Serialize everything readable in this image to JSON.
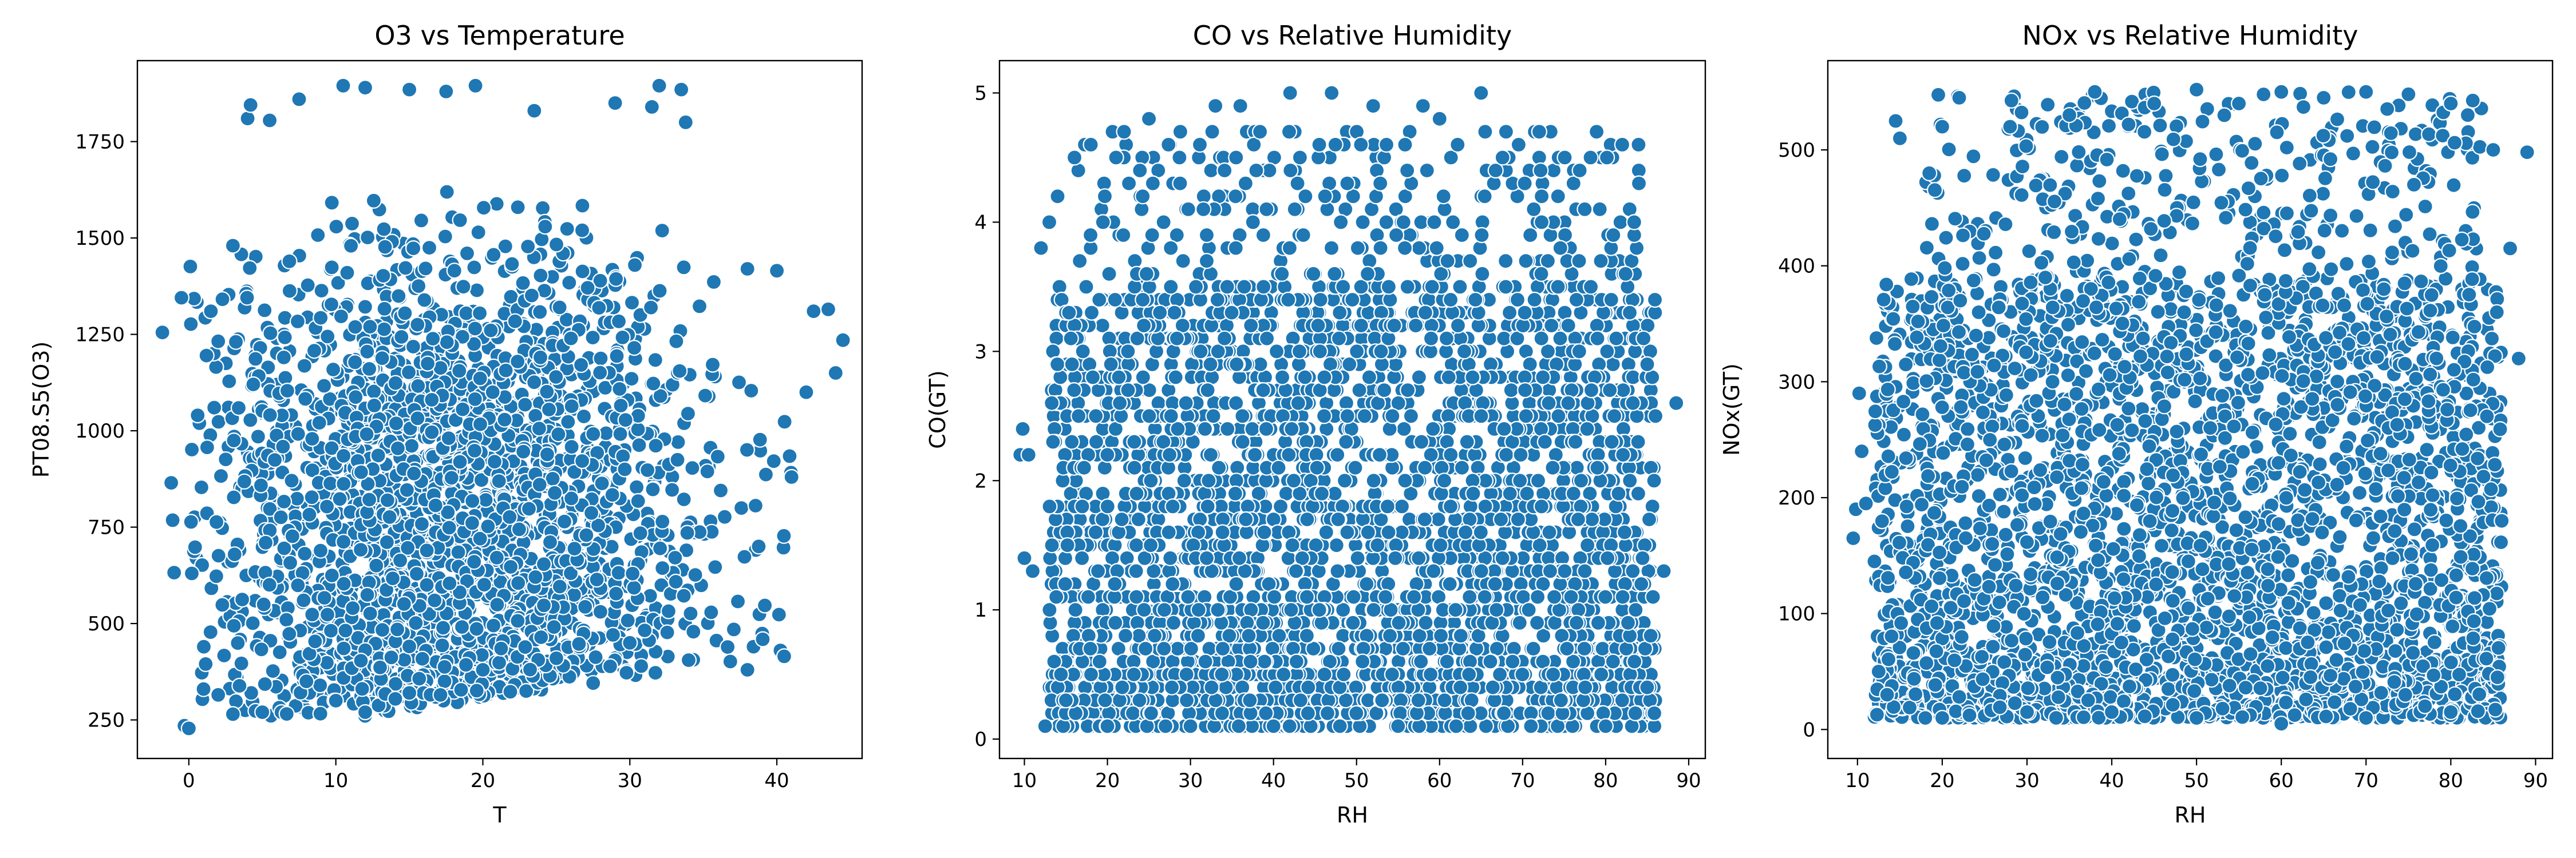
{
  "chart_data": [
    {
      "type": "scatter",
      "title": "O3 vs Temperature",
      "xlabel": "T",
      "ylabel": "PT08.S5(O3)",
      "xlim": [
        -3.5,
        45.8
      ],
      "ylim": [
        150,
        1960
      ],
      "xticks": [
        0,
        10,
        20,
        30,
        40
      ],
      "yticks": [
        250,
        500,
        750,
        1000,
        1250,
        1500,
        1750
      ],
      "marker_color": "#1f77b4",
      "grid": false,
      "sample_points": [
        [
          -1.8,
          1255
        ],
        [
          -1.2,
          865
        ],
        [
          -1.1,
          768
        ],
        [
          -1.0,
          632
        ],
        [
          -0.5,
          1345
        ],
        [
          -0.3,
          235
        ],
        [
          0.0,
          228
        ],
        [
          0.2,
          630
        ],
        [
          0.6,
          1040
        ],
        [
          1.5,
          1310
        ],
        [
          1.2,
          1195
        ],
        [
          2.0,
          1232
        ],
        [
          3.0,
          1480
        ],
        [
          4.0,
          1810
        ],
        [
          4.2,
          1845
        ],
        [
          5.5,
          1805
        ],
        [
          7.5,
          1860
        ],
        [
          10.5,
          1895
        ],
        [
          12.0,
          1890
        ],
        [
          15.0,
          1885
        ],
        [
          17.5,
          1880
        ],
        [
          19.5,
          1895
        ],
        [
          23.5,
          1830
        ],
        [
          29.0,
          1850
        ],
        [
          31.5,
          1840
        ],
        [
          32.0,
          1895
        ],
        [
          33.5,
          1885
        ],
        [
          33.8,
          1800
        ],
        [
          38.0,
          1420
        ],
        [
          40.0,
          1415
        ],
        [
          42.5,
          1310
        ],
        [
          43.5,
          1315
        ],
        [
          44.5,
          1235
        ],
        [
          44.0,
          1150
        ],
        [
          42.0,
          1100
        ],
        [
          41.0,
          880
        ],
        [
          40.5,
          415
        ],
        [
          38.0,
          380
        ],
        [
          34.0,
          405
        ],
        [
          30.0,
          450
        ],
        [
          25.0,
          410
        ],
        [
          20.0,
          380
        ],
        [
          15.0,
          320
        ],
        [
          10.0,
          300
        ],
        [
          5.0,
          270
        ],
        [
          3.0,
          265
        ],
        [
          2.0,
          315
        ],
        [
          1.0,
          330
        ],
        [
          8.0,
          350
        ],
        [
          12.0,
          270
        ]
      ]
    },
    {
      "type": "scatter",
      "title": "CO vs Relative Humidity",
      "xlabel": "RH",
      "ylabel": "CO(GT)",
      "xlim": [
        7.0,
        92.0
      ],
      "ylim": [
        -0.15,
        5.25
      ],
      "xticks": [
        10,
        20,
        30,
        40,
        50,
        60,
        70,
        80,
        90
      ],
      "yticks": [
        0,
        1,
        2,
        3,
        4,
        5
      ],
      "marker_color": "#1f77b4",
      "grid": false,
      "sample_points": [
        [
          9.5,
          2.2
        ],
        [
          9.8,
          2.4
        ],
        [
          10.0,
          1.4
        ],
        [
          10.5,
          2.2
        ],
        [
          11.0,
          1.3
        ],
        [
          12.0,
          3.8
        ],
        [
          12.5,
          0.1
        ],
        [
          13.0,
          4.0
        ],
        [
          14.0,
          4.2
        ],
        [
          18.0,
          4.6
        ],
        [
          22.0,
          4.7
        ],
        [
          25.0,
          4.8
        ],
        [
          27.0,
          0.1
        ],
        [
          33.0,
          4.9
        ],
        [
          36.0,
          4.9
        ],
        [
          42.0,
          5.0
        ],
        [
          47.0,
          5.0
        ],
        [
          52.0,
          4.9
        ],
        [
          58.0,
          4.9
        ],
        [
          60.0,
          4.8
        ],
        [
          65.0,
          5.0
        ],
        [
          68.0,
          4.7
        ],
        [
          72.0,
          4.7
        ],
        [
          82.0,
          4.6
        ],
        [
          84.0,
          4.3
        ],
        [
          85.0,
          2.9
        ],
        [
          86.0,
          2.5
        ],
        [
          87.0,
          1.3
        ],
        [
          88.5,
          2.6
        ],
        [
          80.0,
          0.1
        ],
        [
          71.0,
          0.1
        ],
        [
          62.0,
          0.1
        ],
        [
          55.0,
          0.1
        ],
        [
          48.0,
          0.1
        ],
        [
          40.0,
          0.1
        ],
        [
          30.0,
          0.1
        ],
        [
          20.0,
          0.1
        ],
        [
          15.0,
          0.3
        ]
      ]
    },
    {
      "type": "scatter",
      "title": "NOx vs Relative Humidity",
      "xlabel": "RH",
      "ylabel": "NOx(GT)",
      "xlim": [
        6.5,
        92.0
      ],
      "ylim": [
        -25,
        577
      ],
      "xticks": [
        10,
        20,
        30,
        40,
        50,
        60,
        70,
        80,
        90
      ],
      "yticks": [
        0,
        100,
        200,
        300,
        400,
        500
      ],
      "marker_color": "#1f77b4",
      "grid": false,
      "sample_points": [
        [
          9.5,
          165
        ],
        [
          9.8,
          190
        ],
        [
          10.2,
          290
        ],
        [
          10.5,
          240
        ],
        [
          11.0,
          195
        ],
        [
          12.0,
          145
        ],
        [
          12.5,
          50
        ],
        [
          13.5,
          30
        ],
        [
          14.5,
          525
        ],
        [
          15.0,
          510
        ],
        [
          18.0,
          10
        ],
        [
          20.0,
          520
        ],
        [
          22.0,
          545
        ],
        [
          28.0,
          520
        ],
        [
          35.0,
          530
        ],
        [
          38.0,
          550
        ],
        [
          45.0,
          540
        ],
        [
          50.0,
          552
        ],
        [
          55.0,
          540
        ],
        [
          60.0,
          550
        ],
        [
          65.0,
          545
        ],
        [
          70.0,
          550
        ],
        [
          75.0,
          548
        ],
        [
          80.0,
          540
        ],
        [
          82.0,
          530
        ],
        [
          85.0,
          500
        ],
        [
          87.0,
          415
        ],
        [
          88.0,
          320
        ],
        [
          89.0,
          498
        ],
        [
          86.0,
          180
        ],
        [
          85.5,
          45
        ],
        [
          80.0,
          15
        ],
        [
          70.0,
          10
        ],
        [
          60.0,
          5
        ],
        [
          50.0,
          10
        ],
        [
          40.0,
          15
        ],
        [
          30.0,
          15
        ],
        [
          20.0,
          10
        ]
      ]
    }
  ]
}
